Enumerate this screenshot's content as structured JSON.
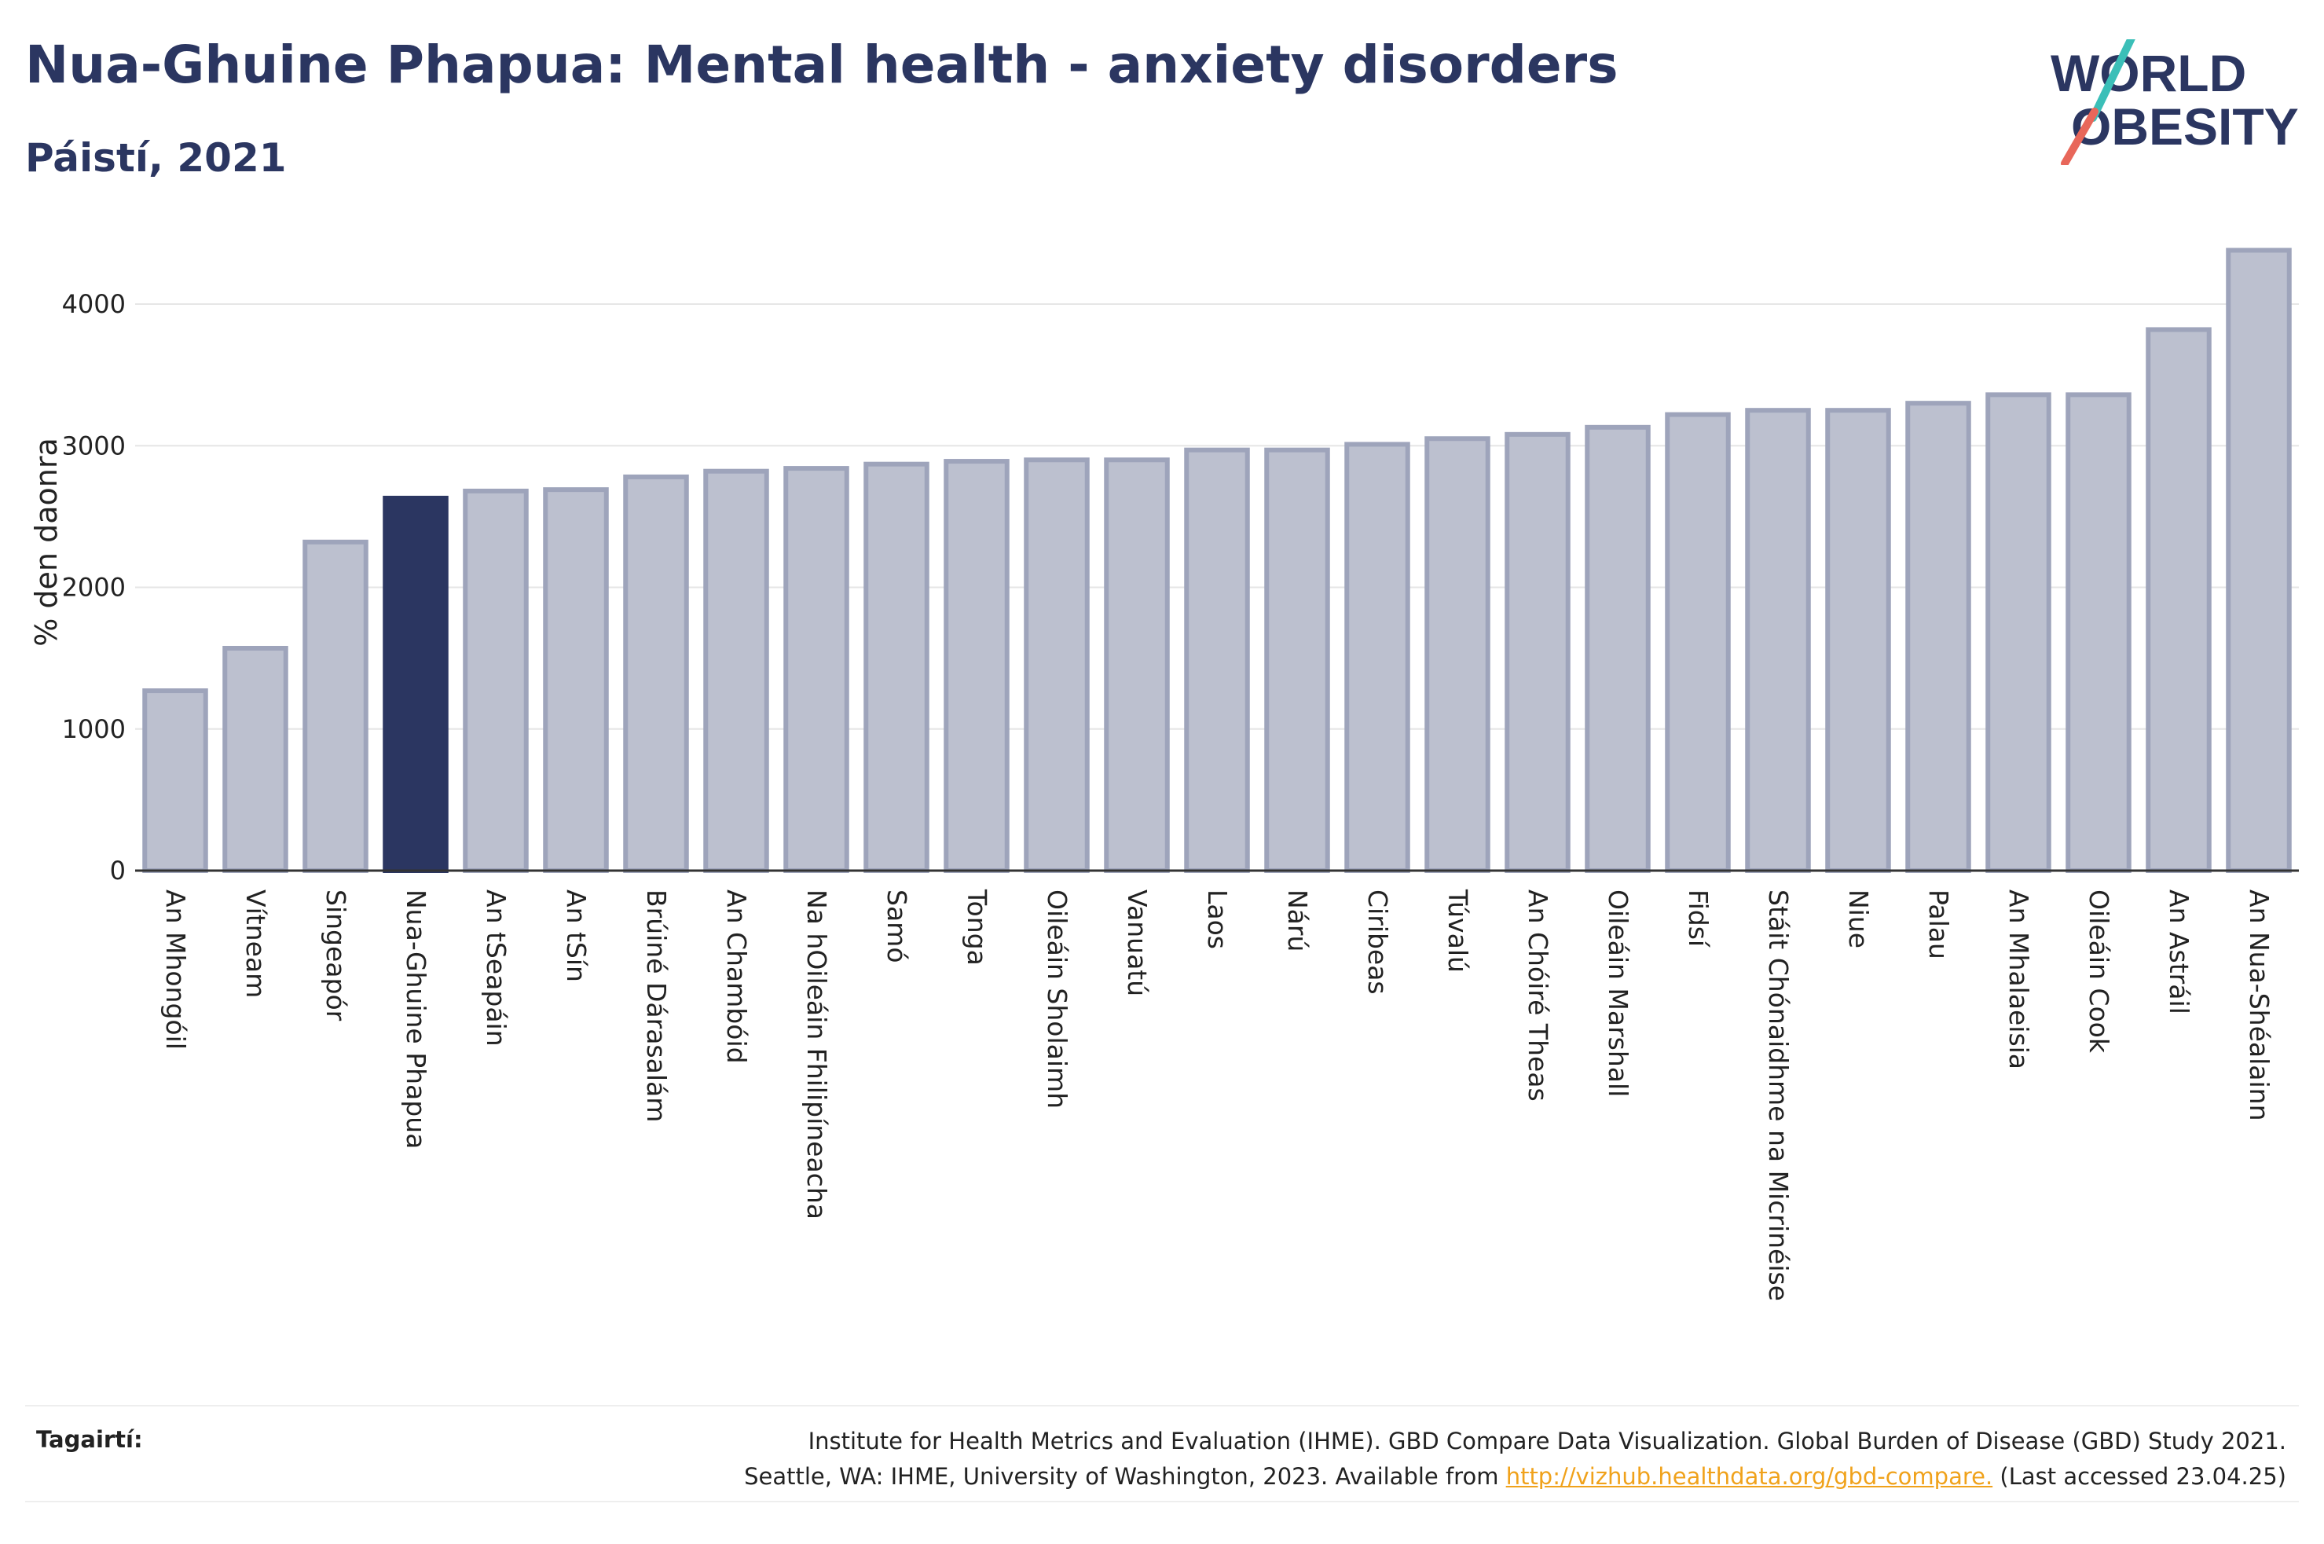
{
  "header": {
    "title": "Nua-Ghuine Phapua: Mental health - anxiety disorders",
    "subtitle": "Páistí, 2021"
  },
  "logo": {
    "line1": "WORLD",
    "line2": "OBESITY",
    "accent_teal": "#3bbfb8",
    "accent_coral": "#e8675a"
  },
  "colors": {
    "highlight_bar": "#2b3661",
    "other_bar": "#bcc0cf",
    "bar_outline": "#9ea4bb",
    "gridline": "#e6e6e6",
    "axis": "#333333",
    "link": "#f0a21b"
  },
  "chart_data": {
    "type": "bar",
    "title": "Nua-Ghuine Phapua: Mental health - anxiety disorders",
    "subtitle": "Páistí, 2021",
    "xlabel": "",
    "ylabel": "% den daonra",
    "ylim": [
      0,
      4400
    ],
    "yticks": [
      0,
      1000,
      2000,
      3000,
      4000
    ],
    "grid": true,
    "highlight": "Nua-Ghuine Phapua",
    "categories": [
      "An Mhongóil",
      "Vítneam",
      "Singeapór",
      "Nua-Ghuine Phapua",
      "An tSeapáin",
      "An tSín",
      "Brúiné Dárasalám",
      "An Chambóid",
      "Na hOileáin Fhilipíneacha",
      "Samó",
      "Tonga",
      "Oileáin Sholaimh",
      "Vanuatú",
      "Laos",
      "Nárú",
      "Ciribeas",
      "Túvalú",
      "An Chóiré Theas",
      "Oileáin Marshall",
      "Fidsí",
      "Stáit Chónaidhme na Micrinéise",
      "Niue",
      "Palau",
      "An Mhalaeisia",
      "Oileáin Cook",
      "An Astráil",
      "An Nua-Shéalainn"
    ],
    "values": [
      1270,
      1570,
      2320,
      2630,
      2680,
      2690,
      2780,
      2820,
      2840,
      2870,
      2890,
      2900,
      2900,
      2970,
      2970,
      3010,
      3050,
      3080,
      3130,
      3220,
      3250,
      3250,
      3300,
      3360,
      3360,
      3820,
      4380
    ]
  },
  "footer": {
    "label": "Tagairtí:",
    "line1": "Institute for Health Metrics and Evaluation (IHME). GBD Compare Data Visualization. Global Burden of Disease (GBD) Study 2021.",
    "line2_before": "Seattle, WA: IHME, University of Washington, 2023. Available from",
    "link": "http://vizhub.healthdata.org/gbd-compare.",
    "line2_after": "(Last accessed 23.04.25)"
  }
}
